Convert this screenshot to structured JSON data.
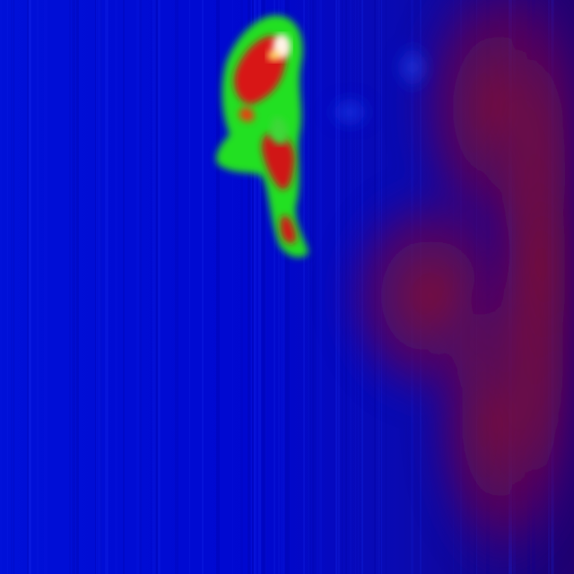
{
  "image": {
    "kind": "thermal-camera-frame",
    "palette": {
      "cold_background": "#0000c8",
      "deep_blue": "#00009a",
      "warm_maroon": "#7a0a3a",
      "mid_green": "#22e020",
      "hot_red": "#d01818",
      "hottest_white": "#fff4e8"
    },
    "subjects": [
      {
        "name": "person-heat-signature",
        "temperature": "hot"
      },
      {
        "name": "warm-wall-region",
        "temperature": "warm"
      }
    ]
  }
}
